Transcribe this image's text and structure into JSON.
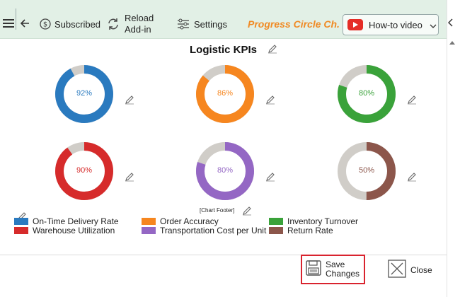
{
  "toolbar": {
    "subscribed_label": "Subscribed",
    "reload_label_line1": "Reload",
    "reload_label_line2": "Add-in",
    "settings_label": "Settings",
    "addin_name": "Progress Circle Ch...",
    "howto_label": "How-to video"
  },
  "chart": {
    "title": "Logistic KPIs",
    "footer": "[Chart Footer]",
    "track_color": "#d0cdc8",
    "circles": [
      {
        "name": "On-Time Delivery Rate",
        "percent": 92,
        "label": "92%",
        "color": "#2a7abf"
      },
      {
        "name": "Order Accuracy",
        "percent": 86,
        "label": "86%",
        "color": "#f6861f"
      },
      {
        "name": "Inventory Turnover",
        "percent": 80,
        "label": "80%",
        "color": "#3aa23a"
      },
      {
        "name": "Warehouse Utilization",
        "percent": 90,
        "label": "90%",
        "color": "#d62b2b"
      },
      {
        "name": "Transportation Cost per Unit",
        "percent": 80,
        "label": "80%",
        "color": "#9467c4"
      },
      {
        "name": "Return Rate",
        "percent": 50,
        "label": "50%",
        "color": "#8c564b"
      }
    ]
  },
  "buttons": {
    "save_line1": "Save",
    "save_line2": "Changes",
    "close_label": "Close"
  }
}
